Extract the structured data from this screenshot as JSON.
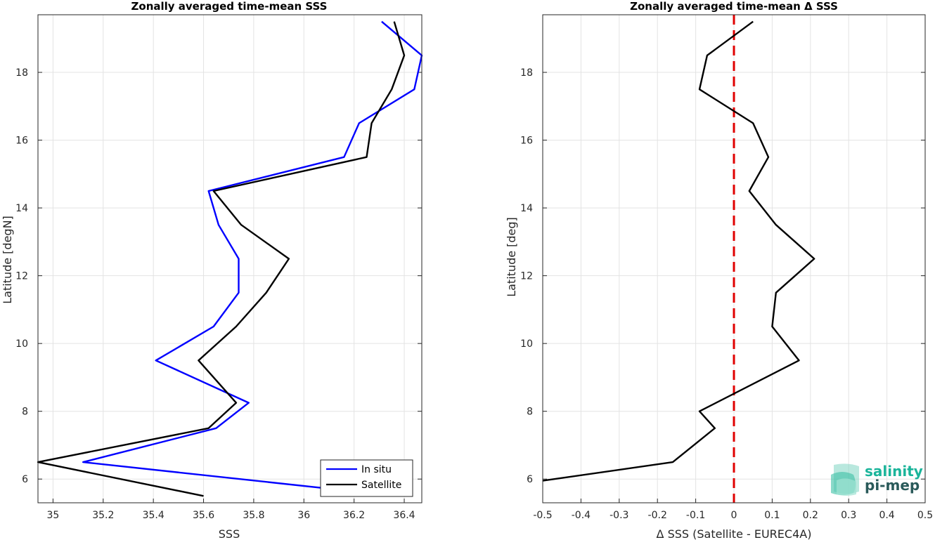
{
  "chart_data": [
    {
      "type": "line",
      "title": "Zonally averaged time-mean SSS",
      "xlabel": "SSS",
      "ylabel": "Latitude [degN]",
      "xlim": [
        34.94,
        36.47
      ],
      "ylim": [
        5.3,
        19.7
      ],
      "xticks": [
        35,
        35.2,
        35.4,
        35.6,
        35.8,
        36,
        36.2,
        36.4
      ],
      "xtick_labels": [
        "35",
        "35.2",
        "35.4",
        "35.6",
        "35.8",
        "36",
        "36.2",
        "36.4"
      ],
      "yticks": [
        6,
        8,
        10,
        12,
        14,
        16,
        18
      ],
      "ytick_labels": [
        "6",
        "8",
        "10",
        "12",
        "14",
        "16",
        "18"
      ],
      "grid": true,
      "legend_position": "bottom-right",
      "series": [
        {
          "name": "In situ",
          "color": "#0000ff",
          "points": [
            [
              36.37,
              5.5
            ],
            [
              35.12,
              6.5
            ],
            [
              35.65,
              7.5
            ],
            [
              35.78,
              8.25
            ],
            [
              35.41,
              9.5
            ],
            [
              35.64,
              10.5
            ],
            [
              35.74,
              11.5
            ],
            [
              35.74,
              12.5
            ],
            [
              35.66,
              13.5
            ],
            [
              35.62,
              14.5
            ],
            [
              36.16,
              15.5
            ],
            [
              36.22,
              16.5
            ],
            [
              36.44,
              17.5
            ],
            [
              36.47,
              18.5
            ],
            [
              36.31,
              19.5
            ]
          ]
        },
        {
          "name": "Satellite",
          "color": "#000000",
          "points": [
            [
              35.6,
              5.5
            ],
            [
              34.94,
              6.5
            ],
            [
              35.62,
              7.5
            ],
            [
              35.73,
              8.25
            ],
            [
              35.58,
              9.5
            ],
            [
              35.73,
              10.5
            ],
            [
              35.85,
              11.5
            ],
            [
              35.94,
              12.5
            ],
            [
              35.75,
              13.5
            ],
            [
              35.64,
              14.5
            ],
            [
              36.25,
              15.5
            ],
            [
              36.27,
              16.5
            ],
            [
              36.35,
              17.5
            ],
            [
              36.4,
              18.5
            ],
            [
              36.36,
              19.5
            ]
          ]
        }
      ]
    },
    {
      "type": "line",
      "title": "Zonally averaged time-mean Δ SSS",
      "xlabel": "Δ SSS (Satellite - EUREC4A)",
      "ylabel": "Latitude [deg]",
      "xlim": [
        -0.5,
        0.5
      ],
      "ylim": [
        5.3,
        19.7
      ],
      "xticks": [
        -0.5,
        -0.4,
        -0.3,
        -0.2,
        -0.1,
        0,
        0.1,
        0.2,
        0.3,
        0.4,
        0.5
      ],
      "xtick_labels": [
        "-0.5",
        "-0.4",
        "-0.3",
        "-0.2",
        "-0.1",
        "0",
        "0.1",
        "0.2",
        "0.3",
        "0.4",
        "0.5"
      ],
      "yticks": [
        6,
        8,
        10,
        12,
        14,
        16,
        18
      ],
      "ytick_labels": [
        "6",
        "8",
        "10",
        "12",
        "14",
        "16",
        "18"
      ],
      "grid": true,
      "reference_line": {
        "x": 0,
        "color": "#e00000",
        "style": "dashed"
      },
      "series": [
        {
          "color": "#000000",
          "points": [
            [
              -0.5,
              5.95
            ],
            [
              -0.16,
              6.5
            ],
            [
              -0.05,
              7.5
            ],
            [
              -0.09,
              8.0
            ],
            [
              0.17,
              9.5
            ],
            [
              0.1,
              10.5
            ],
            [
              0.11,
              11.5
            ],
            [
              0.21,
              12.5
            ],
            [
              0.11,
              13.5
            ],
            [
              0.04,
              14.5
            ],
            [
              0.09,
              15.5
            ],
            [
              0.05,
              16.5
            ],
            [
              -0.09,
              17.5
            ],
            [
              -0.07,
              18.5
            ],
            [
              0.05,
              19.5
            ]
          ]
        }
      ]
    }
  ],
  "logo": {
    "line1": "salinity",
    "line2": "pi-mep",
    "color": "#1ab49a",
    "dark": "#2a5a5a"
  }
}
